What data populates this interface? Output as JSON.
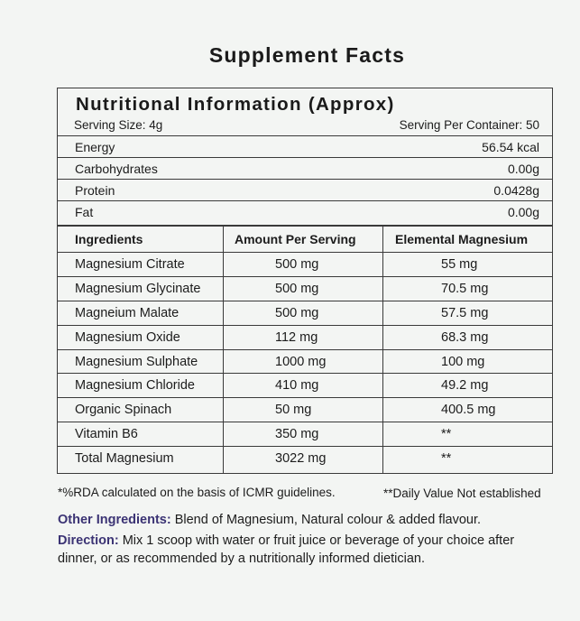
{
  "title": "Supplement Facts",
  "nutrition": {
    "heading": "Nutritional Information (Approx)",
    "serving_size": "Serving Size: 4g",
    "serving_per_container": "Serving Per Container: 50",
    "rows": [
      {
        "label": "Energy",
        "value": "56.54 kcal"
      },
      {
        "label": "Carbohydrates",
        "value": "0.00g"
      },
      {
        "label": "Protein",
        "value": "0.0428g"
      },
      {
        "label": "Fat",
        "value": "0.00g"
      }
    ]
  },
  "ingredients": {
    "headers": [
      "Ingredients",
      "Amount Per Serving",
      "Elemental Magnesium"
    ],
    "rows": [
      {
        "name": "Magnesium Citrate",
        "amount": "500 mg",
        "elemental": "55 mg"
      },
      {
        "name": "Magnesium Glycinate",
        "amount": "500 mg",
        "elemental": "70.5 mg"
      },
      {
        "name": "Magneium Malate",
        "amount": "500 mg",
        "elemental": "57.5 mg"
      },
      {
        "name": "Magnesium Oxide",
        "amount": "112 mg",
        "elemental": "68.3 mg"
      },
      {
        "name": "Magnesium Sulphate",
        "amount": "1000 mg",
        "elemental": "100 mg"
      },
      {
        "name": "Magnesium Chloride",
        "amount": "410 mg",
        "elemental": "49.2 mg"
      },
      {
        "name": "Organic Spinach",
        "amount": "50 mg",
        "elemental": "400.5 mg"
      },
      {
        "name": "Vitamin B6",
        "amount": "350 mg",
        "elemental": "**"
      },
      {
        "name": "Total Magnesium",
        "amount": "3022 mg",
        "elemental": "**"
      }
    ]
  },
  "notes": {
    "rda": "*%RDA calculated on the basis of ICMR guidelines.",
    "daily_value": "**Daily Value Not established"
  },
  "other_ingredients": {
    "label": "Other Ingredients:",
    "text": " Blend of Magnesium, Natural colour & added flavour."
  },
  "direction": {
    "label": "Direction:",
    "text": " Mix 1 scoop with water or fruit juice or beverage of your choice after dinner, or as recommended by a nutritionally informed dietician."
  },
  "colors": {
    "accent": "#3b3374",
    "border": "#3a3a3a"
  }
}
